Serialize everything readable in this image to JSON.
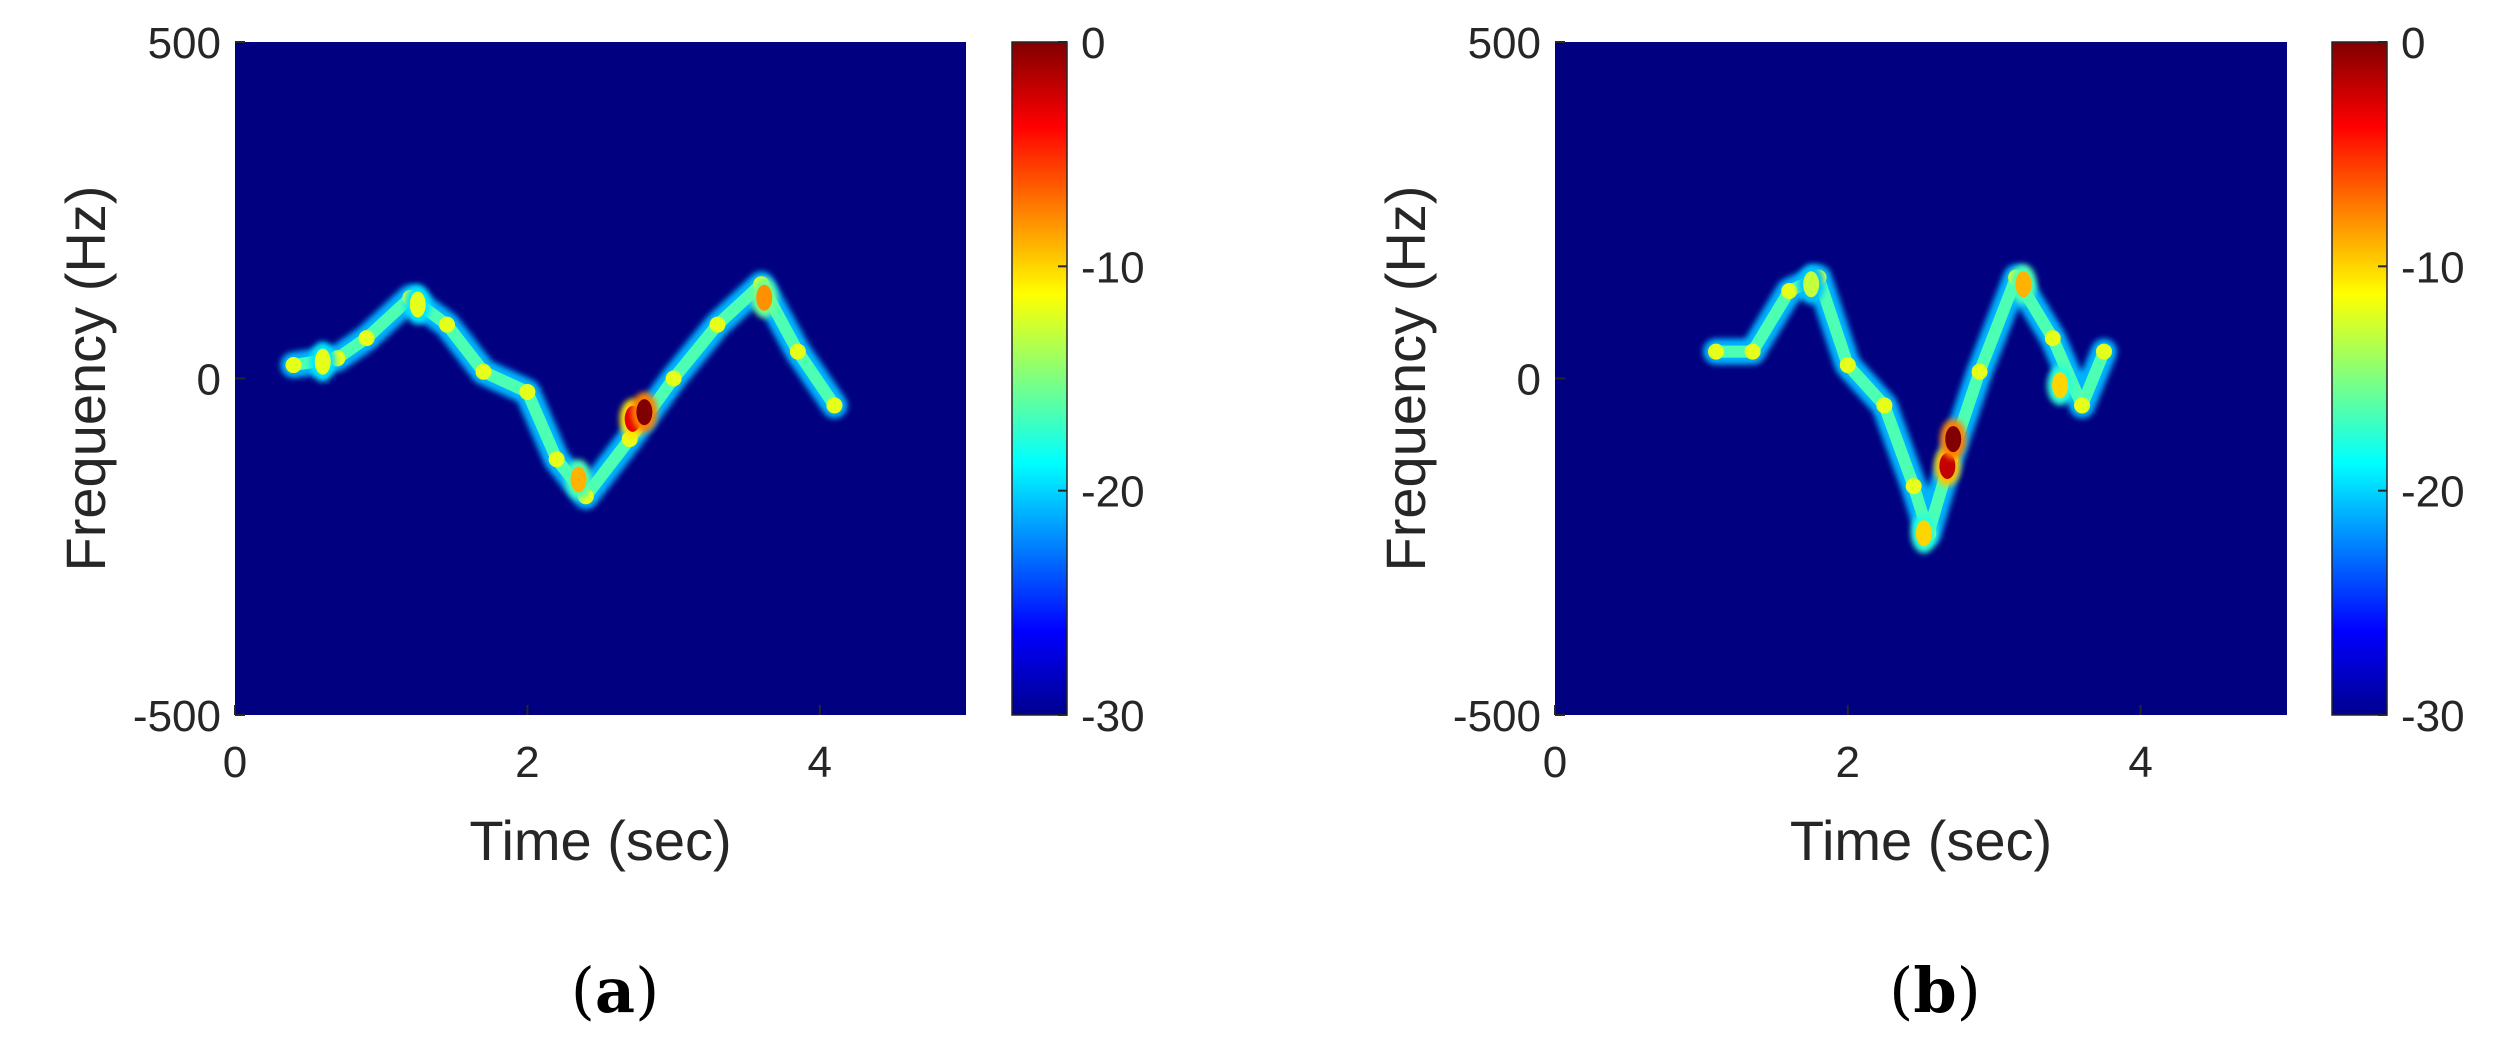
{
  "chart_data": [
    {
      "type": "heatmap",
      "panel_label": "a",
      "xlabel": "Time (sec)",
      "ylabel": "Frequency (Hz)",
      "xlim": [
        0,
        5
      ],
      "ylim": [
        -500,
        500
      ],
      "x_ticks": [
        "0",
        "2",
        "4"
      ],
      "y_ticks": [
        "500",
        "0",
        "-500"
      ],
      "colorbar": {
        "range": [
          -30,
          0
        ],
        "ticks": [
          "0",
          "-10",
          "-20",
          "-30"
        ],
        "colormap": "jet"
      },
      "background_value_db": -30,
      "signature": [
        {
          "t": 0.4,
          "f": 20
        },
        {
          "t": 0.7,
          "f": 30
        },
        {
          "t": 0.9,
          "f": 60
        },
        {
          "t": 1.2,
          "f": 120
        },
        {
          "t": 1.45,
          "f": 80
        },
        {
          "t": 1.7,
          "f": 10
        },
        {
          "t": 2.0,
          "f": -20
        },
        {
          "t": 2.2,
          "f": -120
        },
        {
          "t": 2.4,
          "f": -175
        },
        {
          "t": 2.7,
          "f": -90
        },
        {
          "t": 3.0,
          "f": 0
        },
        {
          "t": 3.3,
          "f": 80
        },
        {
          "t": 3.6,
          "f": 140
        },
        {
          "t": 3.85,
          "f": 40
        },
        {
          "t": 4.1,
          "f": -40
        }
      ],
      "hotspots": [
        {
          "t": 2.8,
          "f": -50,
          "db": 0
        },
        {
          "t": 2.72,
          "f": -60,
          "db": -3
        },
        {
          "t": 3.62,
          "f": 120,
          "db": -8
        },
        {
          "t": 2.35,
          "f": -150,
          "db": -9
        },
        {
          "t": 1.25,
          "f": 110,
          "db": -12
        },
        {
          "t": 0.6,
          "f": 25,
          "db": -12
        }
      ]
    },
    {
      "type": "heatmap",
      "panel_label": "b",
      "xlabel": "Time (sec)",
      "ylabel": "Frequency (Hz)",
      "xlim": [
        0,
        5
      ],
      "ylim": [
        -500,
        500
      ],
      "x_ticks": [
        "0",
        "2",
        "4"
      ],
      "y_ticks": [
        "500",
        "0",
        "-500"
      ],
      "colorbar": {
        "range": [
          -30,
          0
        ],
        "ticks": [
          "0",
          "-10",
          "-20",
          "-30"
        ],
        "colormap": "jet"
      },
      "background_value_db": -30,
      "signature": [
        {
          "t": 1.1,
          "f": 40
        },
        {
          "t": 1.35,
          "f": 40
        },
        {
          "t": 1.6,
          "f": 130
        },
        {
          "t": 1.8,
          "f": 150
        },
        {
          "t": 2.0,
          "f": 20
        },
        {
          "t": 2.25,
          "f": -40
        },
        {
          "t": 2.45,
          "f": -160
        },
        {
          "t": 2.55,
          "f": -230
        },
        {
          "t": 2.7,
          "f": -120
        },
        {
          "t": 2.9,
          "f": 10
        },
        {
          "t": 3.15,
          "f": 150
        },
        {
          "t": 3.4,
          "f": 60
        },
        {
          "t": 3.6,
          "f": -40
        },
        {
          "t": 3.75,
          "f": 40
        }
      ],
      "hotspots": [
        {
          "t": 2.72,
          "f": -90,
          "db": 0
        },
        {
          "t": 2.68,
          "f": -130,
          "db": -2
        },
        {
          "t": 3.2,
          "f": 140,
          "db": -9
        },
        {
          "t": 2.52,
          "f": -230,
          "db": -10
        },
        {
          "t": 1.75,
          "f": 140,
          "db": -13
        },
        {
          "t": 3.45,
          "f": -10,
          "db": -10
        }
      ]
    }
  ]
}
